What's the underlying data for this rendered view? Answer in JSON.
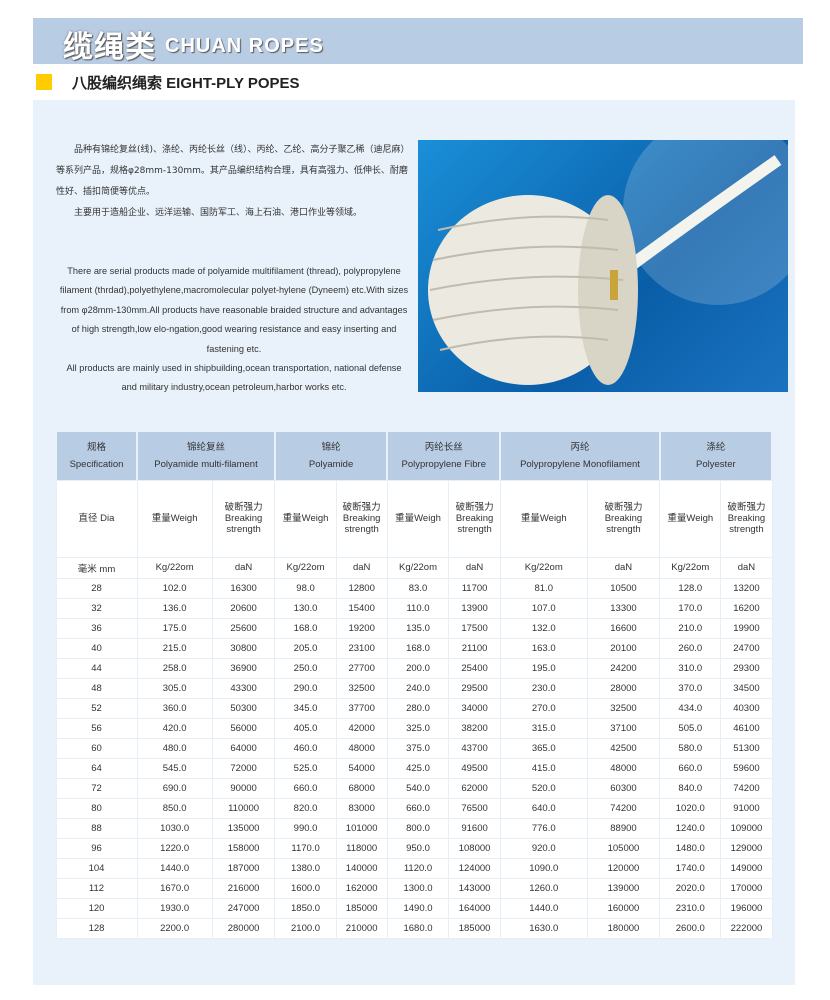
{
  "header": {
    "title_cn": "缆绳类",
    "title_en": "CHUAN ROPES"
  },
  "section": {
    "title": "八股编织绳索 EIGHT-PLY POPES",
    "accent": "#ffcc00"
  },
  "intro_cn": [
    "品种有锦纶复丝(线)、涤纶、丙纶长丝（线）、丙纶、乙纶、高分子聚乙稀（迪尼麻）等系列产品，规格φ28mm-130mm。其产品编织结构合理，具有高强力、低伸长、耐磨性好、插扣简便等优点。",
    "主要用于造船企业、远洋运输、国防军工、海上石油、港口作业等领域。"
  ],
  "intro_en": [
    "There are serial products made of polyamide multifilament (thread), polypropylene filament (thrdad),polyethylene,macromolecular polyet-hylene (Dyneem) etc.With sizes from φ28mm-130mm.All products have reasonable braided structure and advantages of high strength,low elo-ngation,good wearing resistance and easy  inserting and fastening etc.",
    "All products are mainly used in shipbuilding,ocean transportation, national defense and military industry,ocean petroleum,harbor works etc."
  ],
  "table": {
    "spec_cn": "规格",
    "spec_en": "Specification",
    "groups": [
      {
        "cn": "锦纶复丝",
        "en": "Polyamide multi-filament"
      },
      {
        "cn": "锦纶",
        "en": "Polyamide"
      },
      {
        "cn": "丙纶长丝",
        "en": "Polypropylene Fibre"
      },
      {
        "cn": "丙纶",
        "en": "Polypropylene Monofilament"
      },
      {
        "cn": "涤纶",
        "en": "Polyester"
      }
    ],
    "dia_label": "直径 Dia",
    "weight_label": "重量Weigh",
    "strength_cn": "破断强力",
    "strength_en1": "Breaking",
    "strength_en2": "strength",
    "unit_dia": "毫米 mm",
    "unit_weight": "Kg/22om",
    "unit_strength": "daN",
    "rows": [
      [
        "28",
        "102.0",
        "16300",
        "98.0",
        "12800",
        "83.0",
        "11700",
        "81.0",
        "10500",
        "128.0",
        "13200"
      ],
      [
        "32",
        "136.0",
        "20600",
        "130.0",
        "15400",
        "110.0",
        "13900",
        "107.0",
        "13300",
        "170.0",
        "16200"
      ],
      [
        "36",
        "175.0",
        "25600",
        "168.0",
        "19200",
        "135.0",
        "17500",
        "132.0",
        "16600",
        "210.0",
        "19900"
      ],
      [
        "40",
        "215.0",
        "30800",
        "205.0",
        "23100",
        "168.0",
        "21100",
        "163.0",
        "20100",
        "260.0",
        "24700"
      ],
      [
        "44",
        "258.0",
        "36900",
        "250.0",
        "27700",
        "200.0",
        "25400",
        "195.0",
        "24200",
        "310.0",
        "29300"
      ],
      [
        "48",
        "305.0",
        "43300",
        "290.0",
        "32500",
        "240.0",
        "29500",
        "230.0",
        "28000",
        "370.0",
        "34500"
      ],
      [
        "52",
        "360.0",
        "50300",
        "345.0",
        "37700",
        "280.0",
        "34000",
        "270.0",
        "32500",
        "434.0",
        "40300"
      ],
      [
        "56",
        "420.0",
        "56000",
        "405.0",
        "42000",
        "325.0",
        "38200",
        "315.0",
        "37100",
        "505.0",
        "46100"
      ],
      [
        "60",
        "480.0",
        "64000",
        "460.0",
        "48000",
        "375.0",
        "43700",
        "365.0",
        "42500",
        "580.0",
        "51300"
      ],
      [
        "64",
        "545.0",
        "72000",
        "525.0",
        "54000",
        "425.0",
        "49500",
        "415.0",
        "48000",
        "660.0",
        "59600"
      ],
      [
        "72",
        "690.0",
        "90000",
        "660.0",
        "68000",
        "540.0",
        "62000",
        "520.0",
        "60300",
        "840.0",
        "74200"
      ],
      [
        "80",
        "850.0",
        "110000",
        "820.0",
        "83000",
        "660.0",
        "76500",
        "640.0",
        "74200",
        "1020.0",
        "91000"
      ],
      [
        "88",
        "1030.0",
        "135000",
        "990.0",
        "101000",
        "800.0",
        "91600",
        "776.0",
        "88900",
        "1240.0",
        "109000"
      ],
      [
        "96",
        "1220.0",
        "158000",
        "1170.0",
        "118000",
        "950.0",
        "108000",
        "920.0",
        "105000",
        "1480.0",
        "129000"
      ],
      [
        "104",
        "1440.0",
        "187000",
        "1380.0",
        "140000",
        "1120.0",
        "124000",
        "1090.0",
        "120000",
        "1740.0",
        "149000"
      ],
      [
        "112",
        "1670.0",
        "216000",
        "1600.0",
        "162000",
        "1300.0",
        "143000",
        "1260.0",
        "139000",
        "2020.0",
        "170000"
      ],
      [
        "120",
        "1930.0",
        "247000",
        "1850.0",
        "185000",
        "1490.0",
        "164000",
        "1440.0",
        "160000",
        "2310.0",
        "196000"
      ],
      [
        "128",
        "2200.0",
        "280000",
        "2100.0",
        "210000",
        "1680.0",
        "185000",
        "1630.0",
        "180000",
        "2600.0",
        "222000"
      ]
    ]
  }
}
